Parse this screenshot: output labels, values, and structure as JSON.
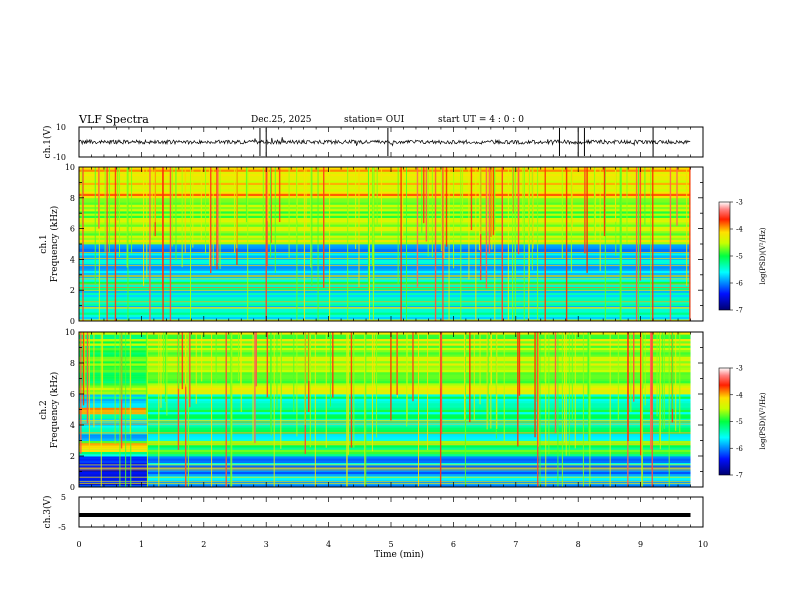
{
  "header": {
    "title": "VLF Spectra",
    "date": "Dec.25, 2025",
    "station": "station= OUI",
    "start_ut": "start  UT =   4 : 0  : 0"
  },
  "chart_data": [
    {
      "type": "line",
      "panel": "ch1-waveform",
      "ylabel": "ch.1(V)",
      "ylim": [
        -10,
        10
      ],
      "yticks": [
        "10",
        "-10"
      ],
      "description_values": {
        "baseline_v": 0,
        "spikes_at_min": [
          2.9,
          3.0,
          4.95,
          7.7,
          8.0,
          8.1,
          9.2
        ]
      }
    },
    {
      "type": "heatmap",
      "panel": "ch1-spectrogram",
      "ylabel": "ch.1\nFrequency (kHz)",
      "ylabel_lines": [
        "ch.1",
        "Frequency (kHz)"
      ],
      "ylim": [
        0,
        10
      ],
      "yticks": [
        "0",
        "2",
        "4",
        "6",
        "8",
        "10"
      ],
      "colorbar": {
        "label": "log(PSD)(V²/Hz)",
        "range": [
          -7,
          -3
        ],
        "ticks": [
          "-3",
          "-4",
          "-5",
          "-6",
          "-7"
        ]
      },
      "bands_khz": [
        {
          "from": 0,
          "to": 2,
          "level": -5.6
        },
        {
          "from": 2,
          "to": 2.6,
          "level": -5.2
        },
        {
          "from": 2.6,
          "to": 5,
          "level": -5.8
        },
        {
          "from": 5,
          "to": 8,
          "level": -4.6
        },
        {
          "from": 8,
          "to": 10,
          "level": -4.1
        }
      ]
    },
    {
      "type": "heatmap",
      "panel": "ch2-spectrogram",
      "ylabel": "ch.2\nFrequency (kHz)",
      "ylabel_lines": [
        "ch.2",
        "Frequency (kHz)"
      ],
      "ylim": [
        0,
        10
      ],
      "yticks": [
        "0",
        "2",
        "4",
        "6",
        "8",
        "10"
      ],
      "colorbar": {
        "label": "log(PSD)(V²/Hz)",
        "range": [
          -7,
          -3
        ],
        "ticks": [
          "-3",
          "-4",
          "-5",
          "-6",
          "-7"
        ]
      },
      "bands_khz": [
        {
          "from": 0,
          "to": 2,
          "level": -5.9
        },
        {
          "from": 2,
          "to": 3,
          "level": -5.0
        },
        {
          "from": 3,
          "to": 4.5,
          "level": -5.4
        },
        {
          "from": 4.5,
          "to": 6,
          "level": -5.2
        },
        {
          "from": 6,
          "to": 10,
          "level": -4.5
        }
      ],
      "early_segment": {
        "until_min": 1.1,
        "strong_bands_khz": [
          [
            2.3,
            2.8
          ],
          [
            4.7,
            5.2
          ]
        ]
      }
    },
    {
      "type": "line",
      "panel": "ch3-waveform",
      "ylabel": "ch.3(V)",
      "ylim": [
        -5,
        5
      ],
      "yticks": [
        "5",
        "-5"
      ],
      "constant_value_v": -1
    }
  ],
  "xaxis": {
    "label": "Time  (min)",
    "range": [
      0,
      10
    ],
    "ticks": [
      "0",
      "1",
      "2",
      "3",
      "4",
      "5",
      "6",
      "7",
      "8",
      "9",
      "10"
    ],
    "data_end_min": 9.8
  },
  "colors": {
    "background": "#ffffff",
    "axis": "#000000",
    "colormap": [
      "#0a0a80",
      "#1530ff",
      "#00c8ff",
      "#00ff80",
      "#b8ff00",
      "#ffee00",
      "#ff8800",
      "#e80000",
      "#ffffff"
    ]
  }
}
